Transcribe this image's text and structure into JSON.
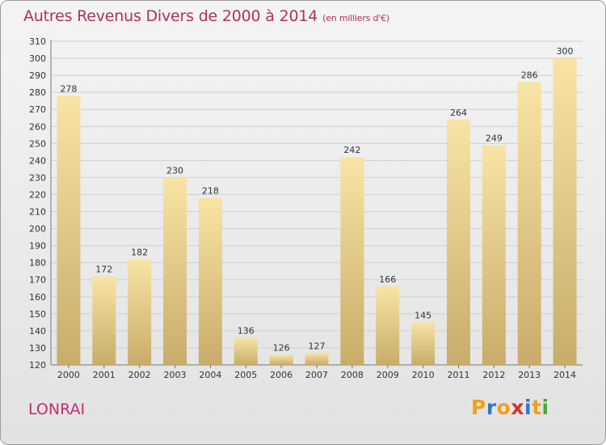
{
  "title": "Autres Revenus Divers de 2000 à 2014",
  "unit": "(en milliers d'€)",
  "commune": "LONRAI",
  "logo": {
    "text": "Proxiti",
    "letters": [
      {
        "ch": "P",
        "color": "#f0a020"
      },
      {
        "ch": "r",
        "color": "#2e78c8"
      },
      {
        "ch": "o",
        "color": "#f0a020"
      },
      {
        "ch": "x",
        "color": "#d8322a"
      },
      {
        "ch": "i",
        "color": "#2e78c8"
      },
      {
        "ch": "t",
        "color": "#f0a020"
      },
      {
        "ch": "i",
        "color": "#48a838"
      }
    ]
  },
  "colors": {
    "title": "#b03060",
    "bar_light": "#f8e4a4",
    "bar_dark": "#c9ac6a",
    "grid": "#cfcfcf",
    "axis_text": "#333333"
  },
  "chart_data": {
    "type": "bar",
    "categories": [
      "2000",
      "2001",
      "2002",
      "2003",
      "2004",
      "2005",
      "2006",
      "2007",
      "2008",
      "2009",
      "2010",
      "2011",
      "2012",
      "2013",
      "2014"
    ],
    "values": [
      278,
      172,
      182,
      230,
      218,
      136,
      126,
      127,
      242,
      166,
      145,
      264,
      249,
      286,
      300
    ],
    "ylim": [
      120,
      310
    ],
    "yticks": [
      120,
      130,
      140,
      150,
      160,
      170,
      180,
      190,
      200,
      210,
      220,
      230,
      240,
      250,
      260,
      270,
      280,
      290,
      300,
      310
    ],
    "grid": true,
    "data_labels": true
  }
}
